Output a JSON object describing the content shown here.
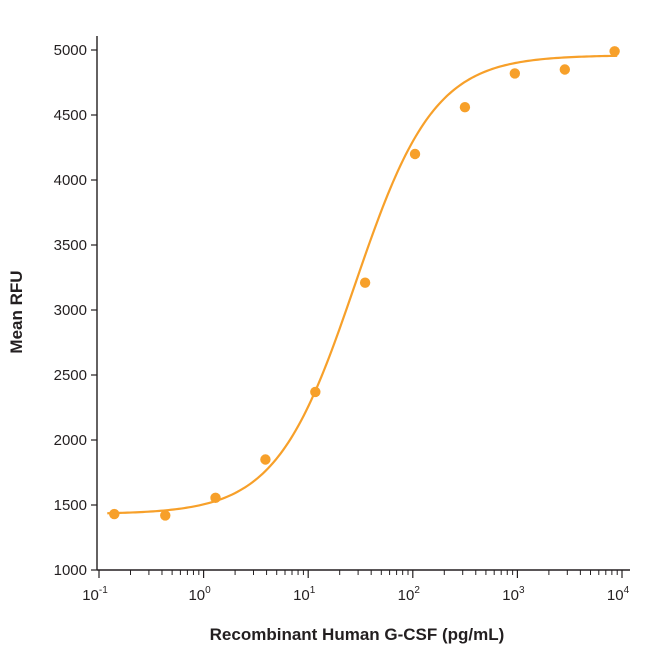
{
  "chart_data": {
    "type": "scatter",
    "title": "",
    "xlabel": "Recombinant Human G-CSF (pg/mL)",
    "ylabel": "Mean RFU",
    "x_scale": "log",
    "xlim": [
      0.1,
      10000
    ],
    "ylim": [
      1000,
      5000
    ],
    "x_ticks": [
      {
        "value": 0.1,
        "base": "10",
        "exp": "-1"
      },
      {
        "value": 1,
        "base": "10",
        "exp": "0"
      },
      {
        "value": 10,
        "base": "10",
        "exp": "1"
      },
      {
        "value": 100,
        "base": "10",
        "exp": "2"
      },
      {
        "value": 1000,
        "base": "10",
        "exp": "3"
      },
      {
        "value": 10000,
        "base": "10",
        "exp": "4"
      }
    ],
    "y_ticks": [
      1000,
      1500,
      2000,
      2500,
      3000,
      3500,
      4000,
      4500,
      5000
    ],
    "grid": false,
    "color": "#f7a02a",
    "series": [
      {
        "x": [
          0.14,
          0.43,
          1.3,
          3.9,
          11.7,
          35,
          105,
          315,
          945,
          2840,
          8500
        ],
        "y": [
          1430,
          1420,
          1555,
          1850,
          2370,
          3210,
          4200,
          4560,
          4820,
          4850,
          4990
        ]
      }
    ],
    "fit_curve": {
      "type": "4PL",
      "bottom": 1430,
      "top": 4960,
      "ec50": 28,
      "hill": 1.15
    }
  }
}
